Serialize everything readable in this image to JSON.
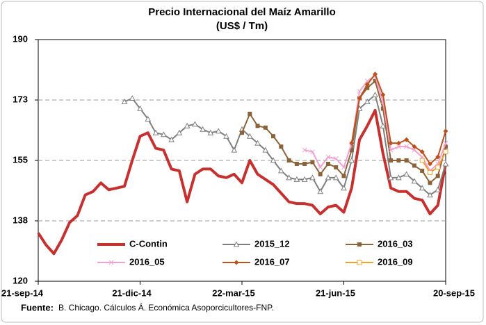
{
  "chart_data": {
    "type": "line",
    "title": "Precio Internacional del Maíz Amarillo",
    "subtitle": "(US$ / Tm)",
    "source_label": "Fuente:",
    "source": "B. Chicago. Cálculos Á. Económica Asoporcicultores-FNP.",
    "categories": [
      "21-sep-14",
      null,
      null,
      null,
      null,
      null,
      null,
      null,
      null,
      null,
      null,
      null,
      null,
      "21-dic-14",
      null,
      null,
      null,
      null,
      null,
      null,
      null,
      null,
      null,
      null,
      null,
      null,
      "22-mar-15",
      null,
      null,
      null,
      null,
      null,
      null,
      null,
      null,
      null,
      null,
      null,
      null,
      "21-jun-15",
      null,
      null,
      null,
      null,
      null,
      null,
      null,
      null,
      null,
      null,
      null,
      null,
      "20-sep-15"
    ],
    "ylim": [
      120,
      190
    ],
    "yticks": [
      120,
      {
        "value": 137.5,
        "label": "138"
      },
      155,
      {
        "value": 172.5,
        "label": "173"
      },
      190
    ],
    "grid": true,
    "series": [
      {
        "name": "C-Contin",
        "color": "#c8302f",
        "marker": "none",
        "values": [
          134,
          130.5,
          128,
          132,
          137,
          139,
          145,
          146,
          148.5,
          146.5,
          147,
          147.5,
          155,
          162,
          163,
          158.5,
          158,
          152.5,
          152,
          143,
          151,
          152.5,
          152.5,
          150.5,
          150,
          151,
          148.5,
          155,
          151,
          149.5,
          148,
          145.5,
          143,
          142.5,
          142.5,
          142,
          139.5,
          141.5,
          142,
          140,
          147,
          161,
          165,
          169.5,
          157,
          147,
          146,
          146,
          144,
          143.5,
          139.5,
          142,
          154
        ]
      },
      {
        "name": "2015_12",
        "color": "#7f7f7f",
        "marker": "triangle",
        "values": [
          null,
          null,
          null,
          null,
          null,
          null,
          null,
          null,
          null,
          null,
          null,
          172,
          173,
          170,
          167,
          163,
          162.5,
          161,
          163,
          165,
          165.5,
          164,
          163,
          163.5,
          162,
          158,
          164,
          162,
          160,
          158,
          155,
          152,
          150,
          149.5,
          149.5,
          150,
          146,
          150,
          150,
          147,
          155,
          170,
          172,
          174,
          165,
          150,
          150,
          151,
          149,
          147,
          145,
          146.5,
          154
        ]
      },
      {
        "name": "2016_03",
        "color": "#8c6239",
        "marker": "square",
        "values": [
          null,
          null,
          null,
          null,
          null,
          null,
          null,
          null,
          null,
          null,
          null,
          null,
          null,
          null,
          null,
          null,
          null,
          null,
          null,
          null,
          null,
          null,
          null,
          null,
          null,
          null,
          163,
          168.5,
          165,
          164.5,
          162,
          159,
          155,
          154,
          154,
          154.5,
          151,
          154,
          153,
          150.5,
          158,
          173,
          176,
          178,
          170,
          155,
          155,
          155,
          153.5,
          152,
          148.5,
          150.5,
          159
        ]
      },
      {
        "name": "2016_05",
        "color": "#f2a0d0",
        "marker": "cross",
        "values": [
          null,
          null,
          null,
          null,
          null,
          null,
          null,
          null,
          null,
          null,
          null,
          null,
          null,
          null,
          null,
          null,
          null,
          null,
          null,
          null,
          null,
          null,
          null,
          null,
          null,
          null,
          null,
          null,
          null,
          null,
          null,
          null,
          null,
          null,
          158,
          157.5,
          153,
          156,
          155.5,
          153,
          160,
          175,
          178,
          179.5,
          172,
          158,
          159,
          159,
          158,
          156,
          152,
          154,
          160
        ]
      },
      {
        "name": "2016_07",
        "color": "#c0501a",
        "marker": "diamond",
        "values": [
          null,
          null,
          null,
          null,
          null,
          null,
          null,
          null,
          null,
          null,
          null,
          null,
          null,
          null,
          null,
          null,
          null,
          null,
          null,
          null,
          null,
          null,
          null,
          null,
          null,
          null,
          null,
          null,
          null,
          null,
          null,
          null,
          null,
          null,
          null,
          null,
          null,
          null,
          null,
          null,
          160,
          173,
          177,
          180,
          174,
          160,
          160,
          161,
          159,
          157.5,
          154,
          156,
          163.5
        ]
      },
      {
        "name": "2016_09",
        "color": "#f0a030",
        "marker": "open-square",
        "values": [
          null,
          null,
          null,
          null,
          null,
          null,
          null,
          null,
          null,
          null,
          null,
          null,
          null,
          null,
          null,
          null,
          null,
          null,
          null,
          null,
          null,
          null,
          null,
          null,
          null,
          null,
          null,
          null,
          null,
          null,
          null,
          null,
          null,
          null,
          null,
          null,
          null,
          null,
          null,
          null,
          null,
          null,
          null,
          null,
          null,
          null,
          null,
          null,
          null,
          155,
          151.5,
          153,
          157.5
        ]
      }
    ]
  }
}
